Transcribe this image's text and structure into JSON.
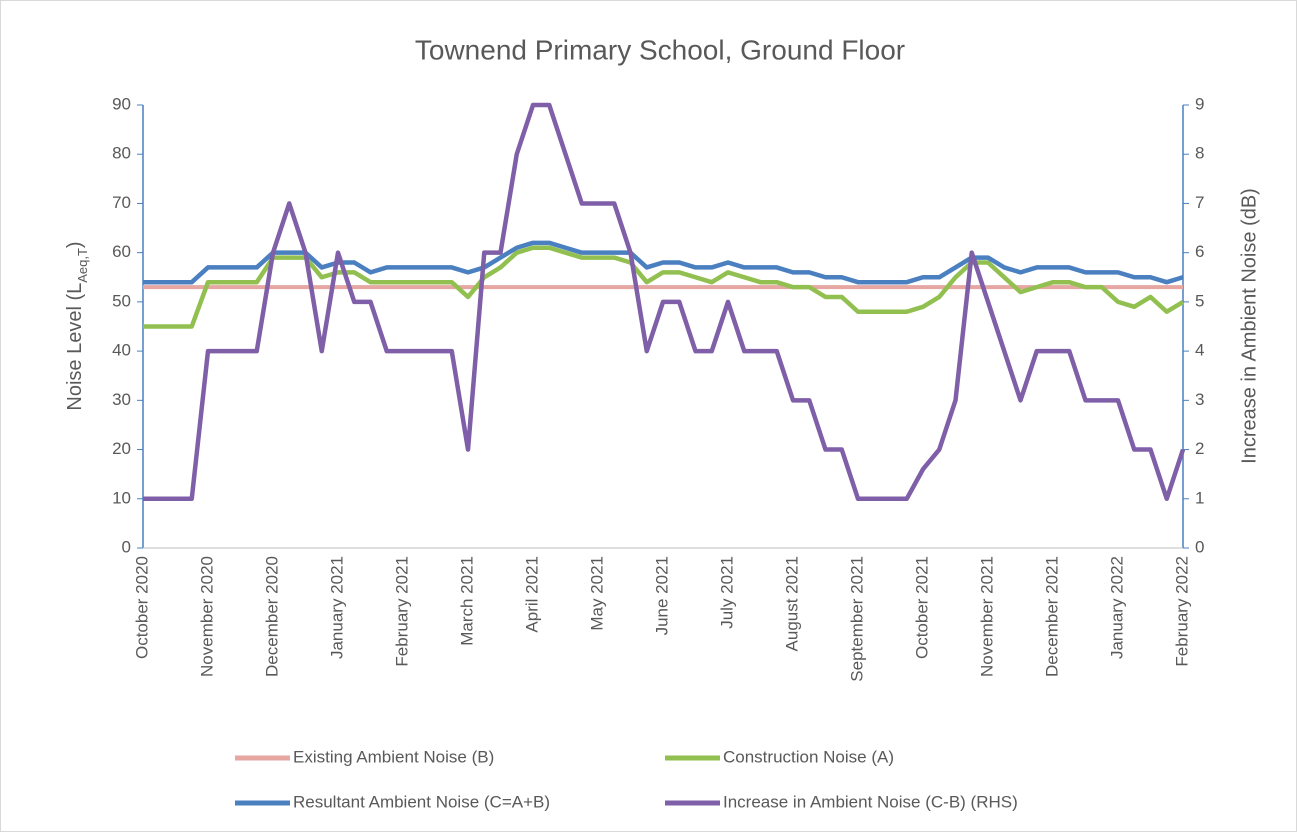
{
  "chart_data": {
    "type": "line",
    "title": "Townend Primary School, Ground Floor",
    "y_label": [
      "Noise Level (L",
      "Aeq,T",
      ")"
    ],
    "y2_label": "Increase in Ambient Noise (dB)",
    "categories": [
      "October 2020",
      null,
      null,
      null,
      "November 2020",
      null,
      null,
      null,
      "December 2020",
      null,
      null,
      null,
      "January 2021",
      null,
      null,
      null,
      "February 2021",
      null,
      null,
      null,
      "March 2021",
      null,
      null,
      null,
      "April 2021",
      null,
      null,
      null,
      "May 2021",
      null,
      null,
      null,
      "June 2021",
      null,
      null,
      null,
      "July 2021",
      null,
      null,
      null,
      "August 2021",
      null,
      null,
      null,
      "September 2021",
      null,
      null,
      null,
      "October 2021",
      null,
      null,
      null,
      "November 2021",
      null,
      null,
      null,
      "December 2021",
      null,
      null,
      null,
      "January 2022",
      null,
      null,
      null,
      "February 2022"
    ],
    "ylim": [
      0,
      90
    ],
    "yticks": [
      0,
      10,
      20,
      30,
      40,
      50,
      60,
      70,
      80,
      90
    ],
    "y2lim": [
      0,
      9
    ],
    "y2ticks": [
      0,
      1,
      2,
      3,
      4,
      5,
      6,
      7,
      8,
      9
    ],
    "series": [
      {
        "name": "Existing Ambient Noise (B)",
        "color": "#e6a6a2",
        "values": [
          53,
          53,
          53,
          53,
          53,
          53,
          53,
          53,
          53,
          53,
          53,
          53,
          53,
          53,
          53,
          53,
          53,
          53,
          53,
          53,
          53,
          53,
          53,
          53,
          53,
          53,
          53,
          53,
          53,
          53,
          53,
          53,
          53,
          53,
          53,
          53,
          53,
          53,
          53,
          53,
          53,
          53,
          53,
          53,
          53,
          53,
          53,
          53,
          53,
          53,
          53,
          53,
          53,
          53,
          53,
          53,
          53,
          53,
          53,
          53,
          53,
          53,
          53,
          53,
          53
        ]
      },
      {
        "name": "Construction Noise (A)",
        "color": "#92c050",
        "values": [
          45,
          45,
          45,
          45,
          54,
          54,
          54,
          54,
          59,
          59,
          59,
          55,
          56,
          56,
          54,
          54,
          54,
          54,
          54,
          54,
          51,
          55,
          57,
          60,
          61,
          61,
          60,
          59,
          59,
          59,
          58,
          54,
          56,
          56,
          55,
          54,
          56,
          55,
          54,
          54,
          53,
          53,
          51,
          51,
          48,
          48,
          48,
          48,
          49,
          51,
          55,
          58,
          58,
          55,
          52,
          53,
          54,
          54,
          53,
          53,
          50,
          49,
          51,
          48,
          50
        ]
      },
      {
        "name": "Resultant Ambient Noise (C=A+B)",
        "color": "#4a7fc0",
        "values": [
          54,
          54,
          54,
          54,
          57,
          57,
          57,
          57,
          60,
          60,
          60,
          57,
          58,
          58,
          56,
          57,
          57,
          57,
          57,
          57,
          56,
          57,
          59,
          61,
          62,
          62,
          61,
          60,
          60,
          60,
          60,
          57,
          58,
          58,
          57,
          57,
          58,
          57,
          57,
          57,
          56,
          56,
          55,
          55,
          54,
          54,
          54,
          54,
          55,
          55,
          57,
          59,
          59,
          57,
          56,
          57,
          57,
          57,
          56,
          56,
          56,
          55,
          55,
          54,
          55
        ]
      },
      {
        "name": "Increase in Ambient Noise (C-B) (RHS)",
        "color": "#7f5fa8",
        "axis": "y2",
        "values": [
          1,
          1,
          1,
          1,
          4,
          4,
          4,
          4,
          6,
          7,
          6,
          4,
          6,
          5,
          5,
          4,
          4,
          4,
          4,
          4,
          2,
          6,
          6,
          8,
          9,
          9,
          8,
          7,
          7,
          7,
          6,
          4,
          5,
          5,
          4,
          4,
          5,
          4,
          4,
          4,
          3,
          3,
          2,
          2,
          1,
          1,
          1,
          1,
          1.6,
          2,
          3,
          6,
          5,
          4,
          3,
          4,
          4,
          4,
          3,
          3,
          3,
          2,
          2,
          1,
          2
        ]
      }
    ]
  }
}
